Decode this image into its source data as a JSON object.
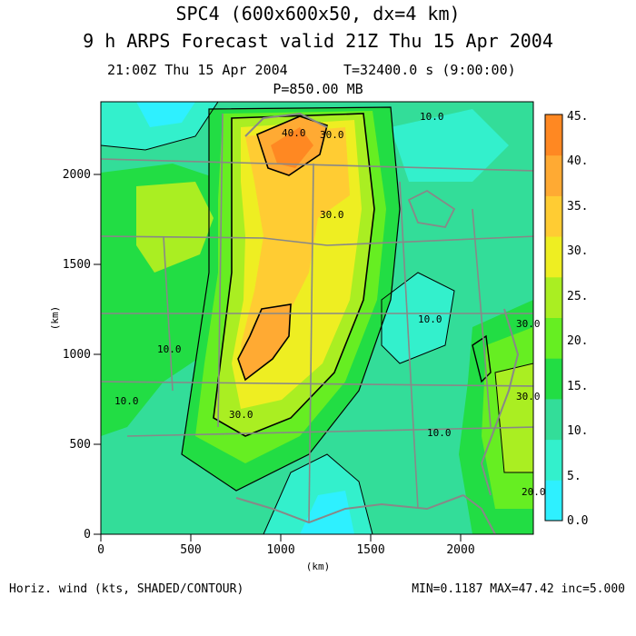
{
  "header": {
    "title": "SPC4 (600x600x50, dx=4 km)",
    "subtitle": "9 h ARPS Forecast valid 21Z Thu 15 Apr 2004",
    "time_label": "21:00Z Thu 15 Apr 2004",
    "seconds_label": "T=32400.0 s (9:00:00)",
    "level_label": "P=850.00 MB"
  },
  "axes": {
    "x_unit": "(km)",
    "y_unit": "(km)",
    "x_ticks": [
      "0",
      "500",
      "1000",
      "1500",
      "2000"
    ],
    "y_ticks": [
      "0",
      "500",
      "1000",
      "1500",
      "2000"
    ]
  },
  "colorbar": {
    "labels": [
      "0.0",
      "5.",
      "10.",
      "15.",
      "20.",
      "25.",
      "30.",
      "35.",
      "40.",
      "45."
    ],
    "colors": [
      "#2ef0ff",
      "#33f0cc",
      "#33dd99",
      "#22dd44",
      "#66ee22",
      "#aaee22",
      "#eeee22",
      "#ffcc33",
      "#ffaa33",
      "#ff8822"
    ]
  },
  "contour_labels": [
    "40.0",
    "30.0",
    "30.0",
    "10.0",
    "10.0",
    "10.0",
    "30.0",
    "30.0",
    "10.0",
    "20.0",
    "10.0",
    "30.0"
  ],
  "footer": {
    "variable": "Horiz. wind (kts, SHADED/CONTOUR)",
    "stats": "MIN=0.1187 MAX=47.42 inc=5.000"
  }
}
